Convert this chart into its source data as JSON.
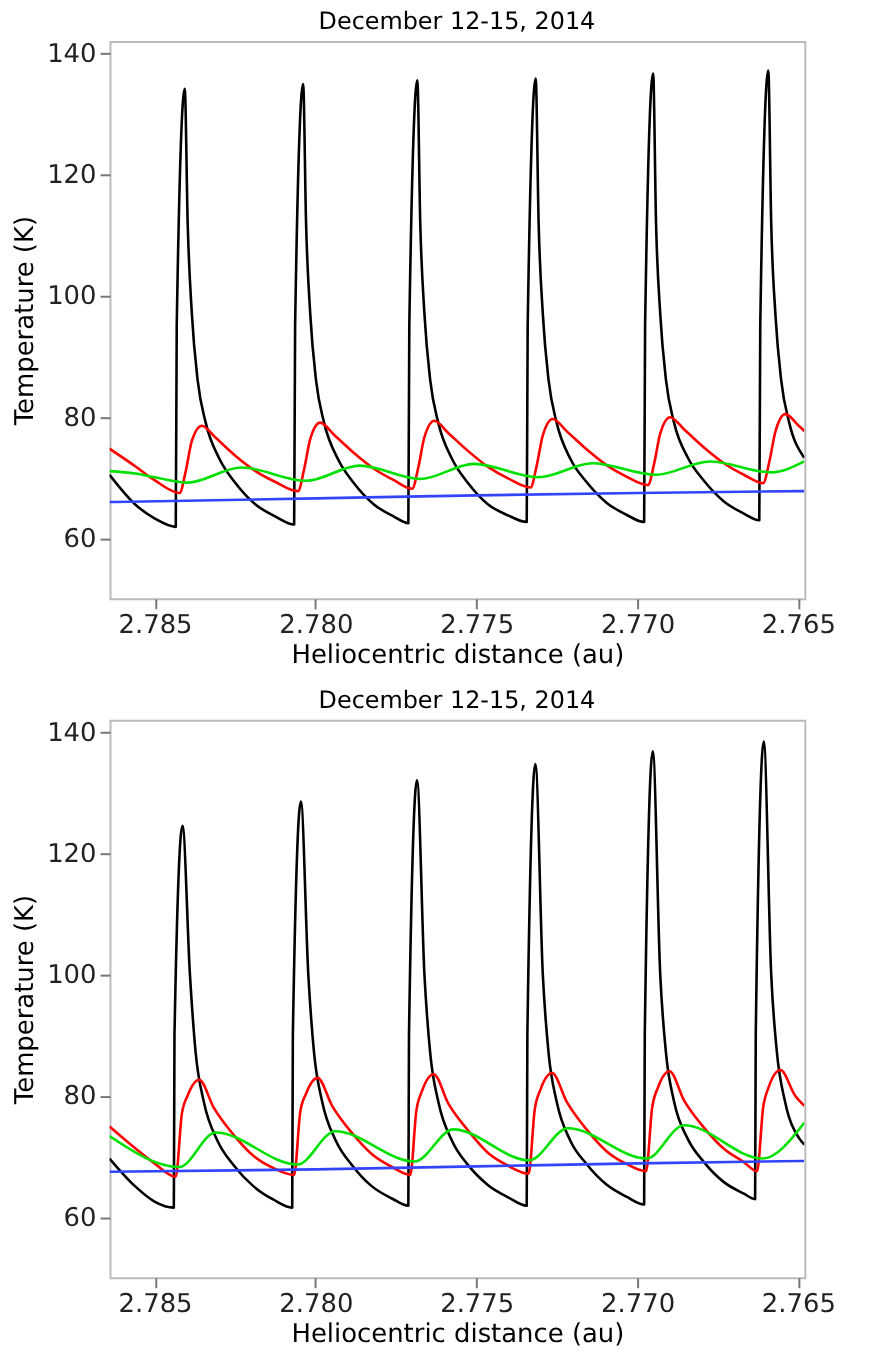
{
  "chart_data": [
    {
      "type": "line",
      "title": "December 12-15, 2014",
      "xlabel": "Heliocentric distance (au)",
      "ylabel": "Temperature (K)",
      "xlim": [
        2.7864,
        2.7648
      ],
      "ylim": [
        50,
        142
      ],
      "xticks": [
        {
          "value": 2.785,
          "label": "2.785"
        },
        {
          "value": 2.78,
          "label": "2.780"
        },
        {
          "value": 2.775,
          "label": "2.775"
        },
        {
          "value": 2.77,
          "label": "2.770"
        },
        {
          "value": 2.765,
          "label": "2.765"
        }
      ],
      "yticks": [
        60,
        80,
        100,
        120,
        140
      ],
      "series": [
        {
          "color": "#000000",
          "x": [
            2.7864,
            2.7856,
            2.785,
            2.78434,
            2.78431,
            2.78406,
            2.78397,
            2.78384,
            2.78366,
            2.78341,
            2.78298,
            2.78248,
            2.78186,
            2.78124,
            2.78066,
            2.78063,
            2.78038,
            2.78029,
            2.78016,
            2.77998,
            2.77973,
            2.7793,
            2.7788,
            2.77818,
            2.77756,
            2.77711,
            2.77708,
            2.77683,
            2.77674,
            2.77661,
            2.77643,
            2.77618,
            2.77575,
            2.77525,
            2.77463,
            2.77401,
            2.77343,
            2.7734,
            2.77315,
            2.77306,
            2.77293,
            2.77275,
            2.7725,
            2.77207,
            2.77157,
            2.77095,
            2.77033,
            2.76978,
            2.76975,
            2.7695,
            2.76941,
            2.76928,
            2.7691,
            2.76885,
            2.76842,
            2.76792,
            2.7673,
            2.76668,
            2.7662,
            2.76617,
            2.76592,
            2.76583,
            2.7657,
            2.76552,
            2.76527,
            2.76484,
            2.7648
          ],
          "values": [
            70.4,
            65.5,
            63.2,
            61.8,
            95,
            134.1,
            112,
            97,
            86,
            79,
            73,
            69,
            65.5,
            63.5,
            62.2,
            95,
            134.9,
            112,
            97,
            86,
            79,
            73,
            69,
            65.5,
            63.5,
            62.4,
            95,
            135.5,
            112,
            97,
            86,
            79,
            73,
            69,
            65.5,
            63.7,
            62.6,
            95,
            135.8,
            112,
            97,
            86,
            79,
            73,
            69.2,
            65.8,
            63.8,
            62.6,
            95,
            136.6,
            112,
            97,
            86,
            79,
            73.2,
            69.4,
            66,
            64,
            62.9,
            95,
            137.1,
            112,
            97,
            86,
            79,
            73.5,
            73.2
          ]
        },
        {
          "color": "#ff0000",
          "x": [
            2.7864,
            2.7856,
            2.785,
            2.78422,
            2.78403,
            2.78384,
            2.78353,
            2.7831,
            2.78248,
            2.78186,
            2.78124,
            2.78054,
            2.78035,
            2.78016,
            2.77985,
            2.77942,
            2.7788,
            2.77818,
            2.77756,
            2.77699,
            2.7768,
            2.77661,
            2.7763,
            2.77587,
            2.77525,
            2.77463,
            2.77401,
            2.77331,
            2.77312,
            2.77293,
            2.77262,
            2.77219,
            2.77157,
            2.77095,
            2.77033,
            2.76966,
            2.76947,
            2.76928,
            2.76897,
            2.76854,
            2.76792,
            2.7673,
            2.76668,
            2.76608,
            2.76589,
            2.7657,
            2.76539,
            2.76496,
            2.7648
          ],
          "values": [
            74.7,
            71.8,
            69.5,
            67.4,
            71,
            76,
            78.5,
            76.5,
            73.5,
            71,
            69.2,
            67.7,
            71.3,
            76.3,
            79.0,
            77,
            74,
            71.4,
            69.5,
            68.1,
            71.6,
            76.6,
            79.3,
            77.3,
            74.3,
            71.7,
            69.8,
            68.3,
            71.9,
            76.9,
            79.6,
            77.6,
            74.6,
            72,
            70.1,
            68.7,
            72.2,
            77.2,
            79.9,
            77.9,
            74.9,
            72.3,
            70.4,
            69,
            72.5,
            77.5,
            80.4,
            78.4,
            77.6
          ]
        },
        {
          "color": "#00e000",
          "x": [
            2.7864,
            2.7856,
            2.785,
            2.78397,
            2.7823,
            2.78029,
            2.77862,
            2.77674,
            2.77507,
            2.77306,
            2.77139,
            2.76941,
            2.76774,
            2.76583,
            2.7648
          ],
          "values": [
            71.0,
            70.6,
            70.0,
            69.1,
            71.6,
            69.4,
            71.9,
            69.7,
            72.2,
            70.0,
            72.3,
            70.4,
            72.6,
            70.8,
            72.6
          ]
        },
        {
          "color": "#3344ff",
          "x": [
            2.7864,
            2.78,
            2.775,
            2.77,
            2.7648
          ],
          "values": [
            65.9,
            66.5,
            67.0,
            67.4,
            67.7
          ]
        }
      ]
    },
    {
      "type": "line",
      "title": "December 12-15, 2014",
      "xlabel": "Heliocentric distance (au)",
      "ylabel": "Temperature (K)",
      "xlim": [
        2.7864,
        2.7648
      ],
      "ylim": [
        50,
        142
      ],
      "xticks": [
        {
          "value": 2.785,
          "label": "2.785"
        },
        {
          "value": 2.78,
          "label": "2.780"
        },
        {
          "value": 2.775,
          "label": "2.775"
        },
        {
          "value": 2.77,
          "label": "2.770"
        },
        {
          "value": 2.765,
          "label": "2.765"
        }
      ],
      "yticks": [
        60,
        80,
        100,
        120,
        140
      ],
      "series": [
        {
          "color": "#000000",
          "x": [
            2.7864,
            2.7856,
            2.785,
            2.7844,
            2.78438,
            2.78413,
            2.7839,
            2.78372,
            2.78347,
            2.78304,
            2.78254,
            2.78192,
            2.7813,
            2.78072,
            2.7807,
            2.78045,
            2.78022,
            2.78004,
            2.77979,
            2.77936,
            2.77886,
            2.77824,
            2.77762,
            2.77711,
            2.77709,
            2.77684,
            2.77661,
            2.77643,
            2.77618,
            2.77575,
            2.77525,
            2.77463,
            2.77401,
            2.77343,
            2.77341,
            2.77316,
            2.77293,
            2.77275,
            2.7725,
            2.77207,
            2.77157,
            2.77095,
            2.77033,
            2.76978,
            2.76976,
            2.76951,
            2.76928,
            2.7691,
            2.76885,
            2.76842,
            2.76792,
            2.7673,
            2.76668,
            2.76633,
            2.76631,
            2.76606,
            2.76583,
            2.76565,
            2.7654,
            2.76497,
            2.7648
          ],
          "values": [
            69.6,
            65,
            62.5,
            61.5,
            90,
            124.5,
            100,
            87,
            79,
            72.5,
            68.5,
            65,
            62.8,
            61.5,
            90,
            128.5,
            100,
            87,
            79,
            72.5,
            68.5,
            65,
            63,
            61.8,
            90,
            132,
            100,
            87,
            79,
            72.5,
            68.5,
            65.2,
            63.2,
            61.8,
            90,
            134.7,
            100,
            87,
            79,
            72.5,
            68.7,
            65.3,
            63.3,
            62.0,
            90,
            136.8,
            100,
            87,
            79,
            72.8,
            69,
            65.7,
            63.8,
            62.9,
            90,
            138.4,
            100,
            87,
            79,
            73,
            71.9
          ]
        },
        {
          "color": "#ff0000",
          "x": [
            2.7864,
            2.7856,
            2.785,
            2.78434,
            2.78415,
            2.78397,
            2.78361,
            2.78316,
            2.78254,
            2.78192,
            2.7813,
            2.78066,
            2.78047,
            2.78029,
            2.77993,
            2.77948,
            2.77886,
            2.77824,
            2.77762,
            2.77705,
            2.77686,
            2.77668,
            2.77632,
            2.77587,
            2.77525,
            2.77463,
            2.77401,
            2.77337,
            2.77318,
            2.773,
            2.77264,
            2.77219,
            2.77157,
            2.77095,
            2.77033,
            2.76972,
            2.76953,
            2.76935,
            2.76899,
            2.76854,
            2.76792,
            2.7673,
            2.76668,
            2.76627,
            2.76608,
            2.7659,
            2.76554,
            2.76509,
            2.7648
          ],
          "values": [
            74.9,
            71.3,
            68.8,
            66.6,
            77,
            80,
            82.6,
            78,
            73.5,
            70,
            68,
            66.9,
            77.3,
            80.3,
            82.9,
            78.3,
            73.8,
            70.3,
            68.2,
            66.9,
            77.5,
            80.8,
            83.5,
            78.7,
            74.2,
            70.5,
            68.4,
            67.1,
            77.7,
            81,
            83.7,
            79,
            74.4,
            70.8,
            68.7,
            67.5,
            78,
            81.3,
            84.0,
            79.2,
            74.7,
            71.2,
            69,
            67.5,
            78,
            81.5,
            84.2,
            80,
            78.3
          ]
        },
        {
          "color": "#00e000",
          "x": [
            2.7864,
            2.78423,
            2.7831,
            2.78056,
            2.77938,
            2.77692,
            2.77571,
            2.77335,
            2.77215,
            2.7697,
            2.76854,
            2.7661,
            2.7648
          ],
          "values": [
            73.3,
            68.2,
            73.9,
            68.6,
            74.1,
            69.1,
            74.4,
            69.3,
            74.6,
            69.6,
            75.1,
            69.6,
            75.5
          ]
        },
        {
          "color": "#3344ff",
          "x": [
            2.7864,
            2.78,
            2.775,
            2.77,
            2.7648
          ],
          "values": [
            67.4,
            67.8,
            68.3,
            68.8,
            69.2
          ]
        }
      ]
    }
  ]
}
